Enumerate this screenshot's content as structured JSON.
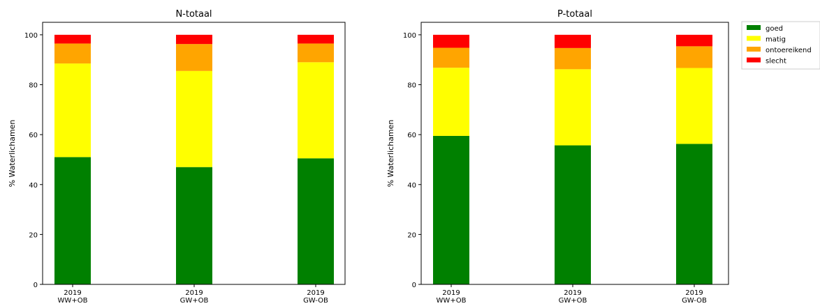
{
  "chart_data": [
    {
      "type": "bar",
      "stacked": true,
      "title": "N-totaal",
      "ylabel": "% Waterlichamen",
      "xlabel": "",
      "ylim": [
        0,
        105
      ],
      "yticks": [
        0,
        20,
        40,
        60,
        80,
        100
      ],
      "categories": [
        [
          "2019",
          "WW+OB"
        ],
        [
          "2019",
          "GW+OB"
        ],
        [
          "2019",
          "GW-OB"
        ]
      ],
      "series": [
        {
          "name": "goed",
          "color": "#008000",
          "values": [
            51.0,
            47.0,
            50.5
          ]
        },
        {
          "name": "matig",
          "color": "#ffff00",
          "values": [
            37.5,
            38.5,
            38.5
          ]
        },
        {
          "name": "ontoereikend",
          "color": "#ffa500",
          "values": [
            8.0,
            10.8,
            7.5
          ]
        },
        {
          "name": "slecht",
          "color": "#ff0000",
          "values": [
            3.5,
            3.7,
            3.5
          ]
        }
      ]
    },
    {
      "type": "bar",
      "stacked": true,
      "title": "P-totaal",
      "ylabel": "% Waterlichamen",
      "xlabel": "",
      "ylim": [
        0,
        105
      ],
      "yticks": [
        0,
        20,
        40,
        60,
        80,
        100
      ],
      "categories": [
        [
          "2019",
          "WW+OB"
        ],
        [
          "2019",
          "GW+OB"
        ],
        [
          "2019",
          "GW-OB"
        ]
      ],
      "series": [
        {
          "name": "goed",
          "color": "#008000",
          "values": [
            59.5,
            55.7,
            56.3
          ]
        },
        {
          "name": "matig",
          "color": "#ffff00",
          "values": [
            27.3,
            30.5,
            30.4
          ]
        },
        {
          "name": "ontoereikend",
          "color": "#ffa500",
          "values": [
            8.0,
            8.5,
            8.7
          ]
        },
        {
          "name": "slecht",
          "color": "#ff0000",
          "values": [
            5.2,
            5.3,
            4.6
          ]
        }
      ]
    }
  ],
  "legend": {
    "placement": "right",
    "entries": [
      {
        "label": "goed",
        "color": "#008000"
      },
      {
        "label": "matig",
        "color": "#ffff00"
      },
      {
        "label": "ontoereikend",
        "color": "#ffa500"
      },
      {
        "label": "slecht",
        "color": "#ff0000"
      }
    ]
  }
}
